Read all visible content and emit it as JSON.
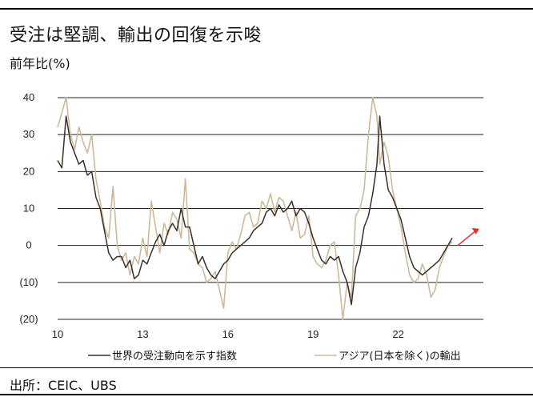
{
  "header": {
    "title": "受注は堅調、輸出の回復を示唆",
    "unit": "前年比(%)"
  },
  "footer": {
    "source": "出所：CEIC、UBS"
  },
  "colors": {
    "orders": "#3a302a",
    "exports": "#cdb99a",
    "arrow": "#e03030",
    "grid": "#222222"
  },
  "chart_data": {
    "type": "line",
    "y_tick_labels": [
      "40",
      "30",
      "20",
      "10",
      "0",
      "(10)",
      "(20)"
    ],
    "y_ticks": [
      40,
      30,
      20,
      10,
      0,
      -10,
      -20
    ],
    "x_tick_labels": [
      "10",
      "13",
      "16",
      "19",
      "22"
    ],
    "x_ticks": [
      2010,
      2013,
      2016,
      2019,
      2022
    ],
    "xlim": [
      2010,
      2025
    ],
    "ylim": [
      -20,
      40
    ],
    "grid": "horizontal",
    "legend_position": "bottom",
    "series": [
      {
        "name": "世界の受注動向を示す指数",
        "color": "#3a302a",
        "x": [
          2010.0,
          2010.15,
          2010.3,
          2010.45,
          2010.6,
          2010.75,
          2010.9,
          2011.05,
          2011.2,
          2011.35,
          2011.5,
          2011.65,
          2011.8,
          2011.95,
          2012.1,
          2012.25,
          2012.4,
          2012.55,
          2012.7,
          2012.85,
          2013.0,
          2013.15,
          2013.3,
          2013.45,
          2013.6,
          2013.75,
          2013.9,
          2014.05,
          2014.2,
          2014.35,
          2014.5,
          2014.65,
          2014.8,
          2014.95,
          2015.1,
          2015.25,
          2015.4,
          2015.55,
          2015.7,
          2015.85,
          2016.0,
          2016.15,
          2016.3,
          2016.45,
          2016.6,
          2016.75,
          2016.9,
          2017.05,
          2017.2,
          2017.35,
          2017.5,
          2017.65,
          2017.8,
          2017.95,
          2018.1,
          2018.25,
          2018.4,
          2018.55,
          2018.7,
          2018.85,
          2019.0,
          2019.15,
          2019.3,
          2019.45,
          2019.6,
          2019.75,
          2019.9,
          2020.05,
          2020.2,
          2020.35,
          2020.5,
          2020.65,
          2020.8,
          2020.95,
          2021.1,
          2021.25,
          2021.35,
          2021.5,
          2021.65,
          2021.8,
          2021.95,
          2022.1,
          2022.25,
          2022.4,
          2022.55,
          2022.7,
          2022.85,
          2023.0,
          2023.15,
          2023.3,
          2023.45,
          2023.6,
          2023.75,
          2023.9
        ],
        "values": [
          23,
          21,
          35,
          28,
          25,
          22,
          23,
          19,
          20,
          13,
          10,
          4,
          -2,
          -4,
          -3,
          -3,
          -6,
          -4,
          -9,
          -8,
          -4,
          -5,
          -2,
          1,
          3,
          0,
          4,
          6,
          4,
          10,
          5,
          5,
          0,
          -5,
          -3,
          -6,
          -8,
          -9,
          -7,
          -5,
          -4,
          -2,
          -1,
          0,
          1,
          2,
          4,
          5,
          6,
          9,
          10,
          8,
          11,
          9,
          10,
          12,
          8,
          10,
          9,
          6,
          2,
          -1,
          -4,
          -5,
          -3,
          -4,
          -3,
          -7,
          -10,
          -16,
          -6,
          -2,
          5,
          8,
          14,
          22,
          35,
          22,
          15,
          13,
          10,
          7,
          2,
          -3,
          -6,
          -7,
          -8,
          -7,
          -6,
          -5,
          -4,
          -2,
          0,
          2
        ]
      },
      {
        "name": "アジア(日本を除く)の輸出",
        "color": "#cdb99a",
        "x": [
          2010.0,
          2010.15,
          2010.3,
          2010.45,
          2010.6,
          2010.75,
          2010.9,
          2011.05,
          2011.2,
          2011.35,
          2011.5,
          2011.65,
          2011.8,
          2011.95,
          2012.1,
          2012.25,
          2012.4,
          2012.55,
          2012.7,
          2012.85,
          2013.0,
          2013.15,
          2013.3,
          2013.45,
          2013.6,
          2013.75,
          2013.9,
          2014.05,
          2014.2,
          2014.35,
          2014.5,
          2014.65,
          2014.8,
          2014.95,
          2015.1,
          2015.25,
          2015.4,
          2015.55,
          2015.7,
          2015.85,
          2016.0,
          2016.15,
          2016.3,
          2016.45,
          2016.6,
          2016.75,
          2016.9,
          2017.05,
          2017.2,
          2017.35,
          2017.5,
          2017.65,
          2017.8,
          2017.95,
          2018.1,
          2018.25,
          2018.4,
          2018.55,
          2018.7,
          2018.85,
          2019.0,
          2019.15,
          2019.3,
          2019.45,
          2019.6,
          2019.75,
          2019.9,
          2020.05,
          2020.2,
          2020.35,
          2020.5,
          2020.65,
          2020.8,
          2020.95,
          2021.1,
          2021.25,
          2021.35,
          2021.5,
          2021.65,
          2021.8,
          2021.95,
          2022.1,
          2022.25,
          2022.4,
          2022.55,
          2022.7,
          2022.85,
          2023.0,
          2023.15,
          2023.3,
          2023.45,
          2023.6,
          2023.75,
          2023.9
        ],
        "values": [
          32,
          36,
          40,
          30,
          26,
          32,
          28,
          25,
          30,
          18,
          12,
          5,
          2,
          16,
          0,
          -4,
          -2,
          -8,
          -3,
          -5,
          2,
          -3,
          12,
          5,
          -2,
          6,
          3,
          9,
          7,
          2,
          18,
          -1,
          -2,
          -5,
          -6,
          -10,
          -9,
          -7,
          -12,
          -17,
          -2,
          1,
          -1,
          3,
          8,
          9,
          5,
          6,
          12,
          10,
          14,
          9,
          13,
          12,
          8,
          4,
          9,
          2,
          3,
          8,
          -3,
          -5,
          -6,
          -4,
          0,
          1,
          -8,
          -20,
          -10,
          -14,
          8,
          10,
          15,
          30,
          40,
          35,
          22,
          28,
          24,
          15,
          10,
          5,
          -2,
          -8,
          -10,
          -9,
          -5,
          -8,
          -14,
          -12,
          -6,
          -3,
          0,
          1
        ]
      }
    ],
    "annotation": "trend-arrow-up"
  }
}
